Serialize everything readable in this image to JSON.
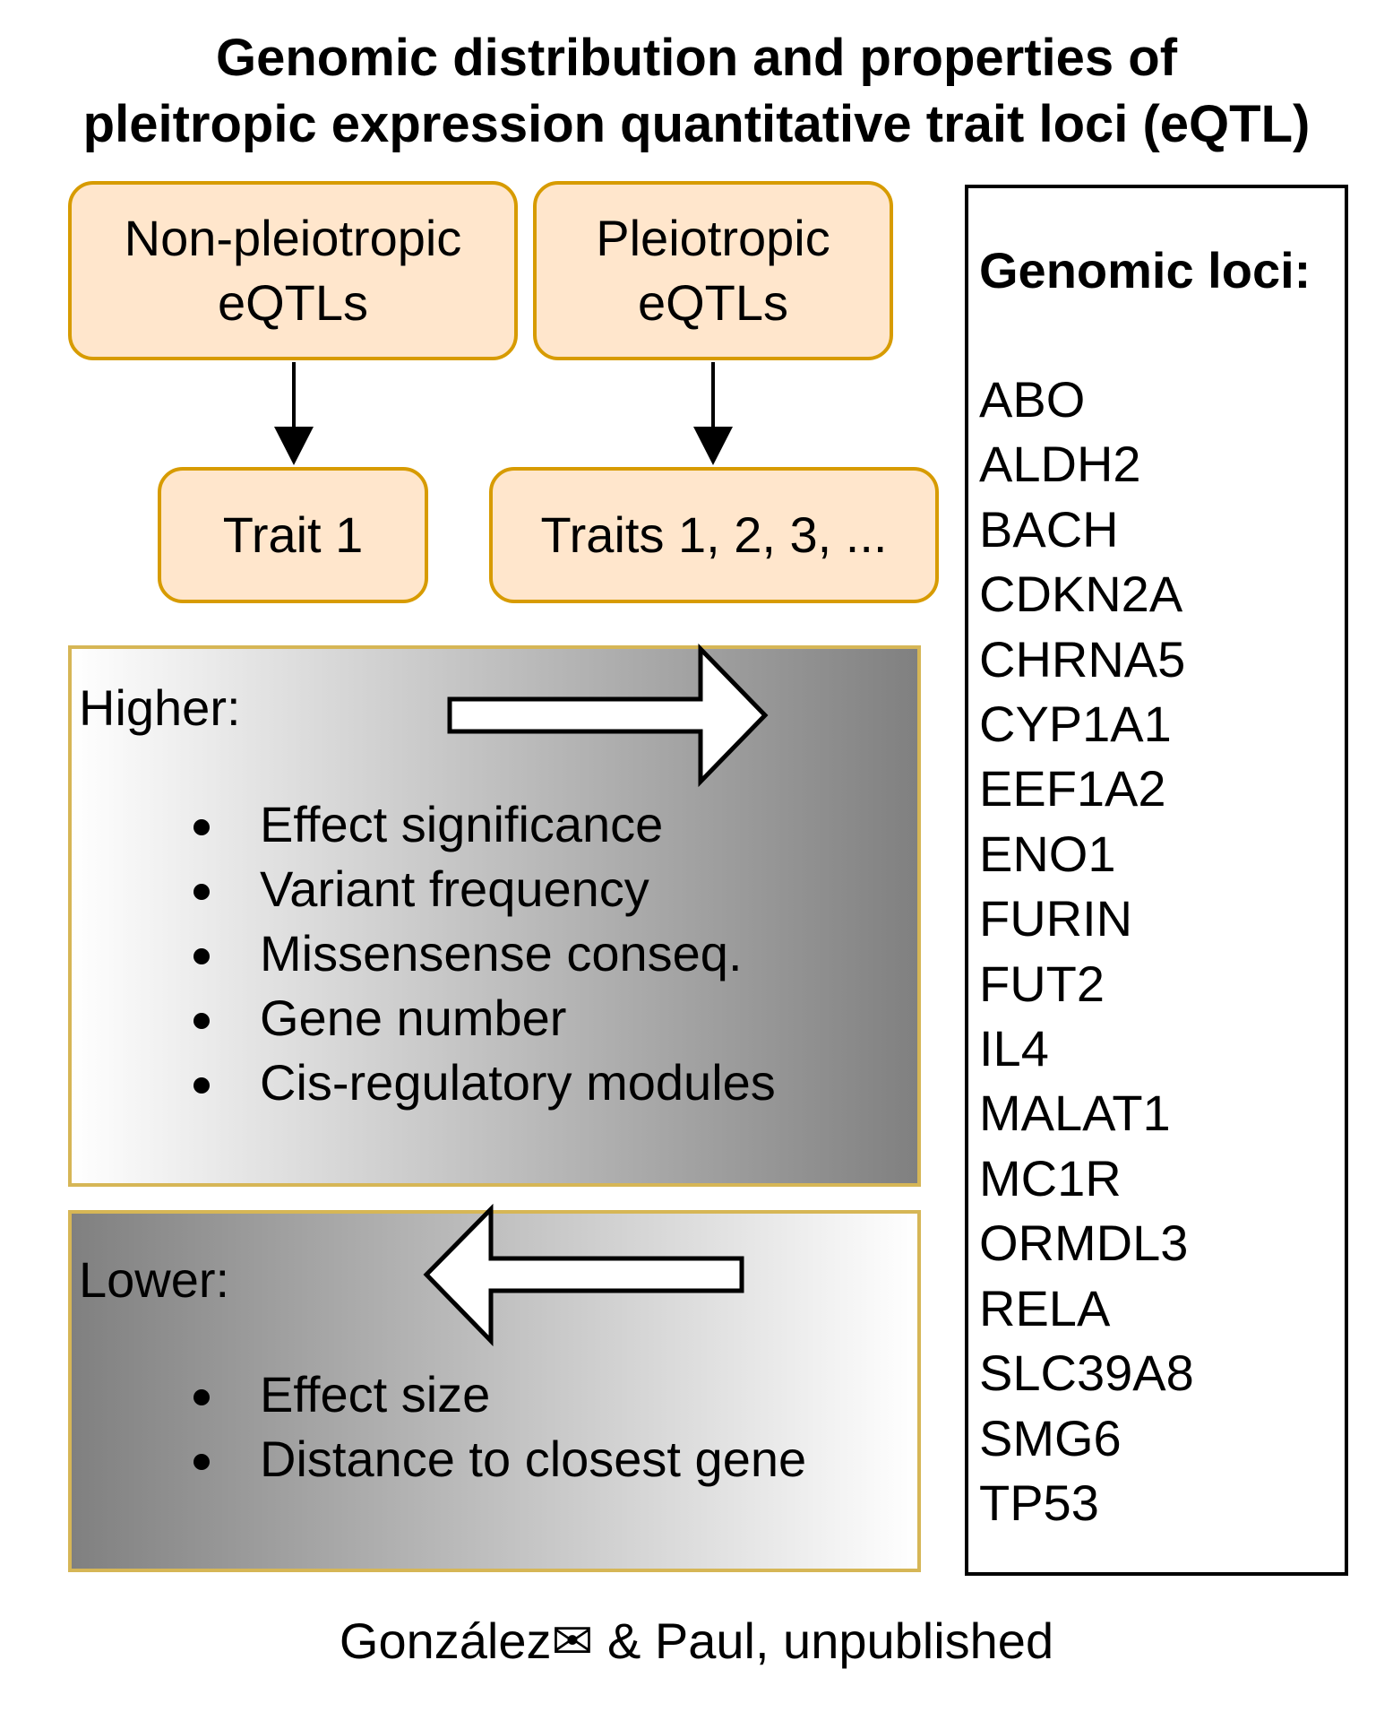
{
  "title": {
    "line1": "Genomic distribution and properties of",
    "line2": "pleitropic expression quantitative trait loci (eQTL)"
  },
  "boxes": {
    "non_pleiotropic": {
      "line1": "Non-pleiotropic",
      "line2": "eQTLs"
    },
    "pleiotropic": {
      "line1": "Pleiotropic",
      "line2": "eQTLs"
    },
    "trait_1": "Trait 1",
    "traits_many": "Traits 1, 2, 3, ..."
  },
  "higher": {
    "heading": "Higher:",
    "items": [
      "Effect significance",
      "Variant frequency",
      "Missensense conseq.",
      "Gene number",
      "Cis-regulatory modules"
    ]
  },
  "lower": {
    "heading": "Lower:",
    "items": [
      "Effect size",
      "Distance to closest gene"
    ]
  },
  "loci": {
    "title": "Genomic loci:",
    "items": [
      "ABO",
      "ALDH2",
      "BACH",
      "CDKN2A",
      "CHRNA5",
      "CYP1A1",
      "EEF1A2",
      "ENO1",
      "FURIN",
      "FUT2",
      "IL4",
      "MALAT1",
      "MC1R",
      "ORMDL3",
      "RELA",
      "SLC39A8",
      "SMG6",
      "TP53"
    ]
  },
  "footer": "González✉ & Paul, unpublished",
  "colors": {
    "box_fill": "#ffe6cc",
    "box_border": "#d79b00",
    "panel_border": "#d6b656"
  }
}
